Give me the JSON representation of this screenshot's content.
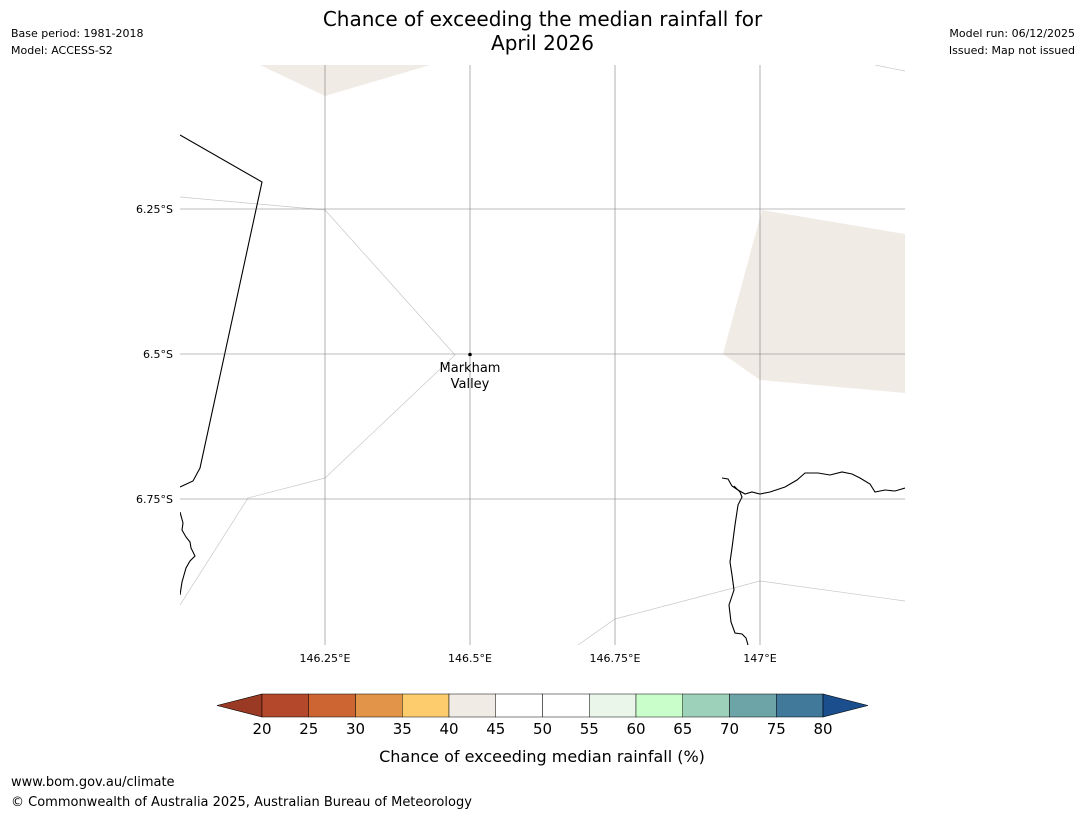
{
  "header": {
    "base_period": "Base period: 1981-2018",
    "model": "Model: ACCESS-S2",
    "title_line1": "Chance of exceeding the median rainfall for",
    "title_line2": "April 2026",
    "model_run": "Model run: 06/12/2025",
    "issued": "Issued: Map not issued"
  },
  "map": {
    "lat_labels": [
      "6.25°S",
      "6.5°S",
      "6.75°S"
    ],
    "lon_labels": [
      "146.25°E",
      "146.5°E",
      "146.75°E",
      "147°E"
    ],
    "place_label_line1": "Markham",
    "place_label_line2": "Valley",
    "land_fill_color": "#f0ebe5"
  },
  "colorbar": {
    "ticks": [
      "20",
      "25",
      "30",
      "35",
      "40",
      "45",
      "50",
      "55",
      "60",
      "65",
      "70",
      "75",
      "80"
    ],
    "colors": [
      "#9b3a24",
      "#b3482a",
      "#cc6532",
      "#e29548",
      "#fdcc6c",
      "#f0ebe5",
      "#ffffff",
      "#ffffff",
      "#e9f6e9",
      "#c9fdca",
      "#9dd1b9",
      "#6da4a7",
      "#41799b",
      "#1a4e8c"
    ],
    "label": "Chance of exceeding median rainfall (%)"
  },
  "footer": {
    "url": "www.bom.gov.au/climate",
    "copyright": "© Commonwealth of Australia 2025, Australian Bureau of Meteorology"
  }
}
